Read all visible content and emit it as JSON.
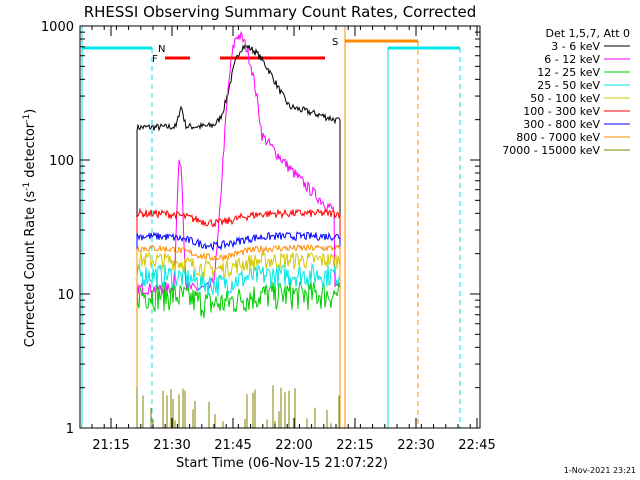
{
  "chart_data": {
    "type": "line",
    "title": "RHESSI Observing Summary Count Rates, Corrected",
    "xlabel": "Start Time (06-Nov-15 21:07:22)",
    "ylabel_main": "Corrected Count Rate (s",
    "ylabel_sup1": "-1",
    "ylabel_mid": " detector",
    "ylabel_sup2": "-1",
    "ylabel_end": ")",
    "footer": "1-Nov-2021 23:21",
    "x_ticks": [
      "21:15",
      "21:30",
      "21:45",
      "22:00",
      "22:15",
      "22:30",
      "22:45"
    ],
    "y_ticks": [
      "1",
      "10",
      "100",
      "1000"
    ],
    "y_scale": "log",
    "y_range": [
      1,
      1000
    ],
    "legend_title": "Det 1,5,7, Att 0",
    "legend_position": "top-right",
    "series": [
      {
        "name": "3 - 6 keV",
        "color": "#000000",
        "base": 180,
        "peak": 680,
        "visible": true
      },
      {
        "name": "6 - 12 keV",
        "color": "#ff00ff",
        "base": 10,
        "peak": 850,
        "visible": true
      },
      {
        "name": "12 - 25 keV",
        "color": "#00cc00",
        "base": 10,
        "visible": true
      },
      {
        "name": "25 - 50 keV",
        "color": "#00e5e5",
        "base": 14,
        "visible": true
      },
      {
        "name": "50 - 100 keV",
        "color": "#d4c800",
        "base": 18,
        "visible": true
      },
      {
        "name": "100 - 300 keV",
        "color": "#ff0000",
        "base": 40,
        "visible": true
      },
      {
        "name": "300 - 800 keV",
        "color": "#0000ff",
        "base": 27,
        "visible": true
      },
      {
        "name": "800 - 7000 keV",
        "color": "#ff8c00",
        "base": 22,
        "visible": true
      },
      {
        "name": "7000 - 15000 keV",
        "color": "#808000",
        "base": 1.3,
        "visible": true
      }
    ],
    "annotations": [
      {
        "label": "N",
        "color": "#00e5e5"
      },
      {
        "label": "F",
        "color": "#ff0000"
      },
      {
        "label": "S",
        "color": "#ff8c00"
      }
    ]
  }
}
